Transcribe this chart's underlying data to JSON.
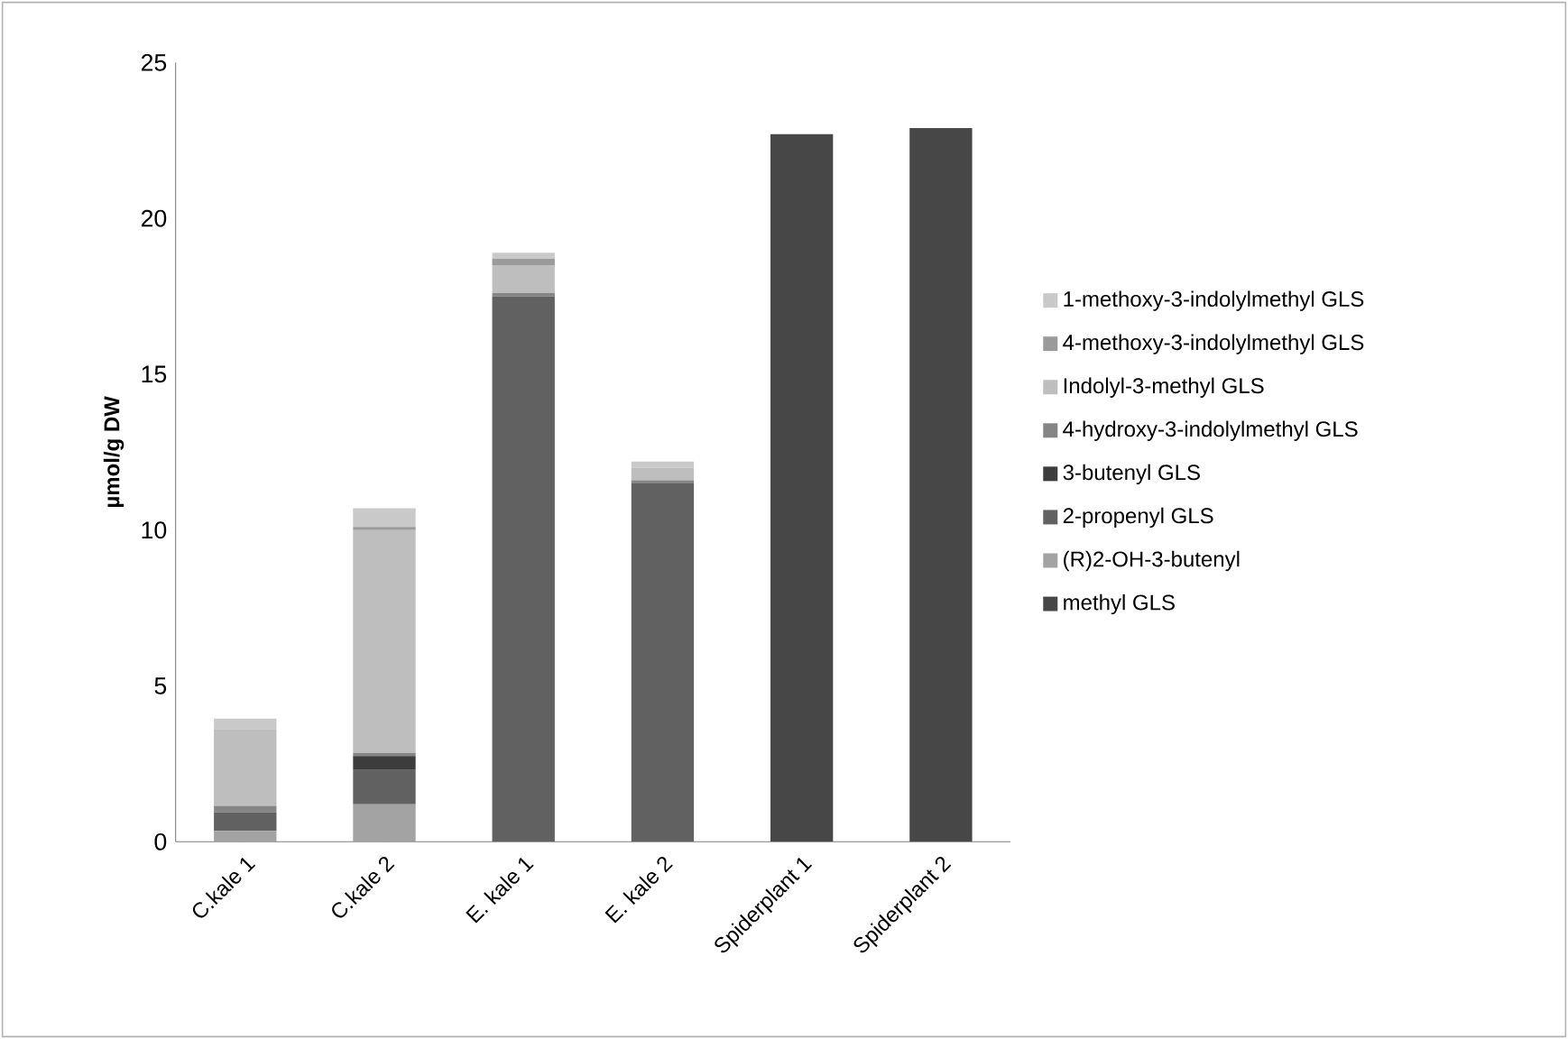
{
  "chart_data": {
    "type": "bar",
    "stacked": true,
    "ylabel": "µmol/g DW",
    "categories": [
      "C.kale 1",
      "C.kale 2",
      "E. kale 1",
      "E. kale 2",
      "Spiderplant 1",
      "Spiderplant 2"
    ],
    "ylim": [
      0,
      25
    ],
    "yticks": [
      0,
      5,
      10,
      15,
      20,
      25
    ],
    "legend": "right",
    "grid": false,
    "series": [
      {
        "name": "methyl GLS",
        "color": "#474747",
        "values": [
          0,
          0,
          0,
          0,
          22.7,
          22.9
        ]
      },
      {
        "name": "(R)2-OH-3-butenyl",
        "color": "#a3a3a3",
        "values": [
          0.35,
          1.2,
          0,
          0,
          0,
          0
        ]
      },
      {
        "name": "2-propenyl GLS",
        "color": "#616161",
        "values": [
          0.6,
          1.1,
          17.5,
          11.5,
          0,
          0
        ]
      },
      {
        "name": "3-butenyl GLS",
        "color": "#3c3c3c",
        "values": [
          0,
          0.45,
          0,
          0,
          0,
          0
        ]
      },
      {
        "name": "4-hydroxy-3-indolylmethyl GLS",
        "color": "#858585",
        "values": [
          0.2,
          0.1,
          0.1,
          0.1,
          0,
          0
        ]
      },
      {
        "name": "Indolyl-3-methyl GLS",
        "color": "#bebebe",
        "values": [
          2.45,
          7.15,
          0.9,
          0.4,
          0,
          0
        ]
      },
      {
        "name": "4-methoxy-3-indolylmethyl GLS",
        "color": "#9a9a9a",
        "values": [
          0,
          0.1,
          0.2,
          0,
          0,
          0
        ]
      },
      {
        "name": "1-methoxy-3-indolylmethyl GLS",
        "color": "#c9c9c9",
        "values": [
          0.35,
          0.6,
          0.2,
          0.2,
          0,
          0
        ]
      }
    ]
  }
}
